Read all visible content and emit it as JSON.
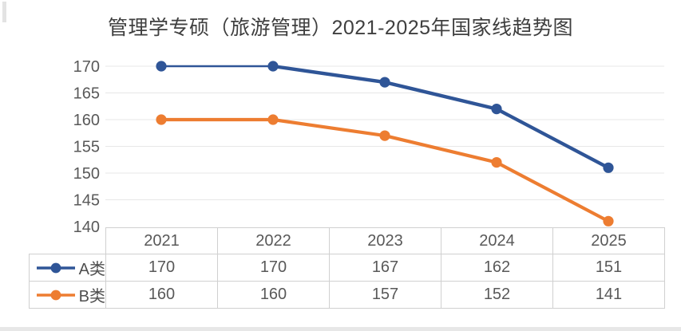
{
  "title": {
    "text": "管理学专硕（旅游管理）2021-2025年国家线趋势图"
  },
  "chart_data": {
    "type": "line",
    "categories": [
      "2021",
      "2022",
      "2023",
      "2024",
      "2025"
    ],
    "series": [
      {
        "name": "A类",
        "values": [
          170,
          170,
          167,
          162,
          151
        ],
        "color": "#2F5597",
        "line_width": 4.4,
        "first_segment_width": 2.6
      },
      {
        "name": "B类",
        "values": [
          160,
          160,
          157,
          152,
          141
        ],
        "color": "#ED7D31",
        "line_width": 4.2,
        "first_segment_width": 4.2
      }
    ],
    "yticks": [
      140,
      145,
      150,
      155,
      160,
      165,
      170
    ],
    "ylim": [
      140,
      170
    ],
    "marker": "circle",
    "grid": "horizontal",
    "legend_position": "data-table-left"
  },
  "colors": {
    "gridline": "#e7e7e7",
    "table_border": "#d0d0d0",
    "axis_text": "#595959",
    "title_text": "#3f3f3f"
  }
}
